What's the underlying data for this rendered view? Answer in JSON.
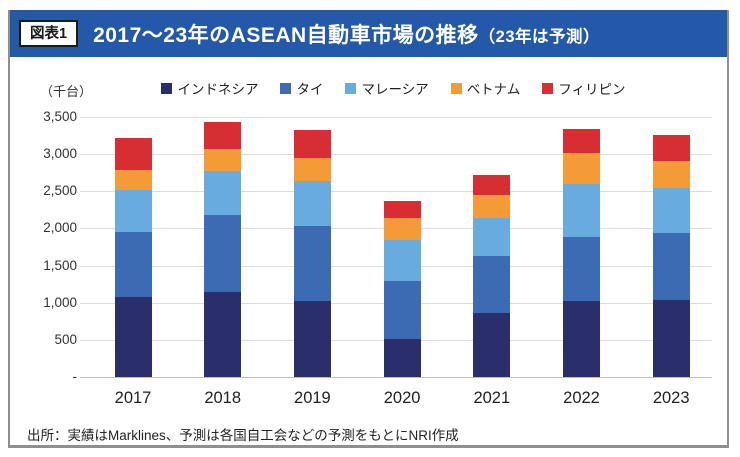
{
  "figure": {
    "tag": "図表1",
    "title_main": "2017～23年のASEAN自動車市場の推移",
    "title_note": "（23年は予測）"
  },
  "chart_data": {
    "type": "bar",
    "stacked": true,
    "title": "2017～23年のASEAN自動車市場の推移（23年は予測）",
    "unit_label": "（千台）",
    "xlabel": "",
    "ylabel": "千台",
    "ylim": [
      0,
      3500
    ],
    "y_ticks": [
      "3,500",
      "3,000",
      "2,500",
      "2,000",
      "1,500",
      "1,000",
      "500",
      "-"
    ],
    "grid": true,
    "legend_position": "top",
    "categories": [
      "2017",
      "2018",
      "2019",
      "2020",
      "2021",
      "2022",
      "2023"
    ],
    "series": [
      {
        "name": "インドネシア",
        "color": "#2a2e6a",
        "values": [
          1075,
          1140,
          1020,
          510,
          865,
          1025,
          1035
        ]
      },
      {
        "name": "タイ",
        "color": "#3d6bb3",
        "values": [
          880,
          1040,
          1010,
          785,
          765,
          860,
          905
        ]
      },
      {
        "name": "マレーシア",
        "color": "#68abde",
        "values": [
          560,
          595,
          610,
          555,
          510,
          710,
          610
        ]
      },
      {
        "name": "ベトナム",
        "color": "#f49b38",
        "values": [
          270,
          290,
          310,
          290,
          315,
          415,
          360
        ]
      },
      {
        "name": "フィリピン",
        "color": "#d62e33",
        "values": [
          430,
          365,
          370,
          230,
          270,
          335,
          345
        ]
      }
    ],
    "totals": [
      3215,
      3430,
      3320,
      2370,
      2725,
      3345,
      3255
    ]
  },
  "footer": {
    "source": "出所：実績はMarklines、予測は各国自工会などの予測をもとにNRI作成"
  },
  "colors": {
    "header_bg": "#2458a8",
    "panel_border": "#8f8f8f",
    "gridline": "#dcdcdc",
    "zero_line": "#bdbdbd",
    "text": "#333333"
  }
}
